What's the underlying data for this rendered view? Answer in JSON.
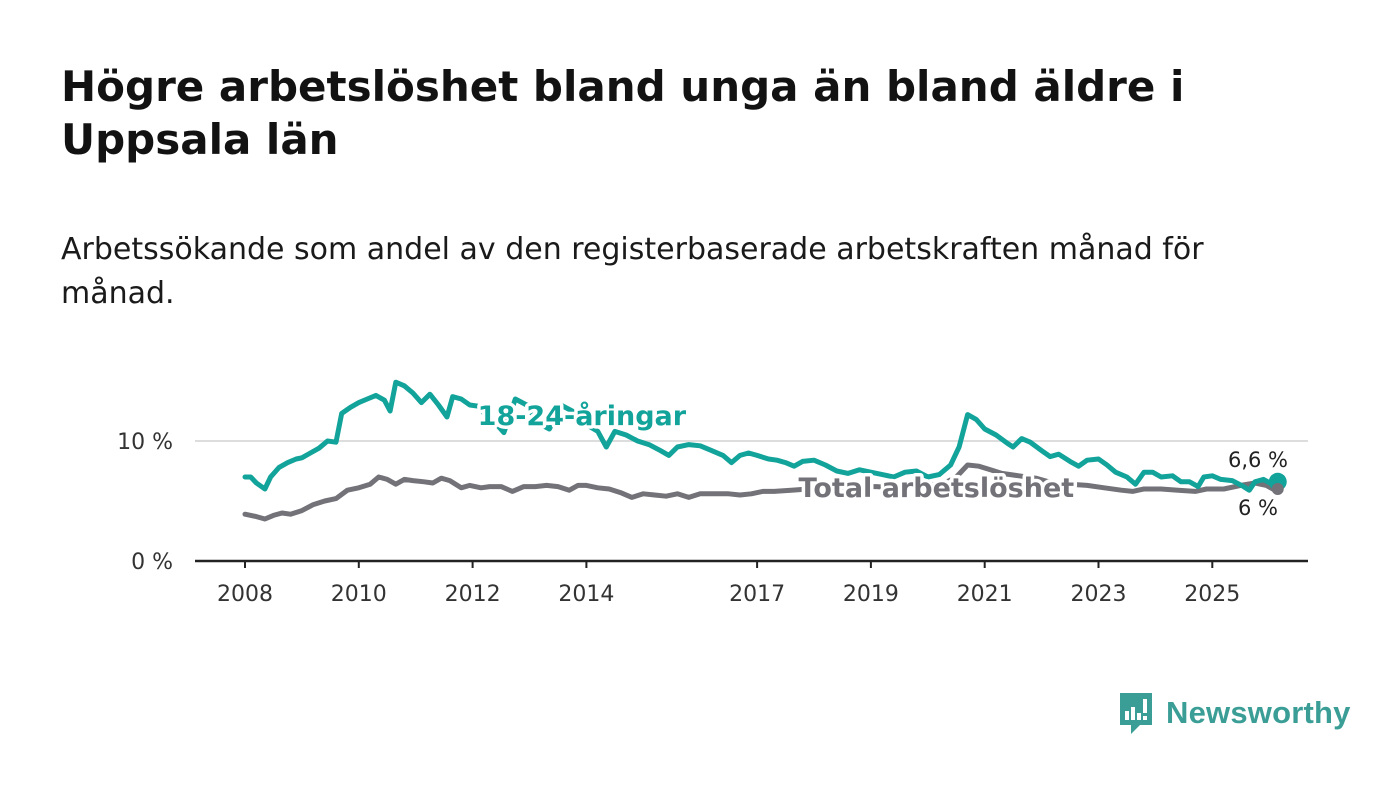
{
  "title": "Högre arbetslöshet bland unga än bland äldre i Uppsala län",
  "subtitle": "Arbetssökande som andel av den registerbaserade arbetskraften månad för månad.",
  "brand": {
    "name": "Newsworthy",
    "icon": "newsworthy-logo-icon"
  },
  "colors": {
    "youth": "#12a39a",
    "total": "#737278",
    "axis": "#222222",
    "grid": "#dddddd"
  },
  "chart_data": {
    "type": "line",
    "title": "Högre arbetslöshet bland unga än bland äldre i Uppsala län",
    "xlabel": "",
    "ylabel": "",
    "xlim": [
      2008.0,
      2026.8
    ],
    "ylim": [
      0,
      15
    ],
    "yticks": [
      {
        "value": 0,
        "label": "0 %"
      },
      {
        "value": 10,
        "label": "10 %"
      }
    ],
    "xticks": [
      {
        "value": 2008,
        "label": "2008"
      },
      {
        "value": 2010,
        "label": "2010"
      },
      {
        "value": 2012,
        "label": "2012"
      },
      {
        "value": 2014,
        "label": "2014"
      },
      {
        "value": 2017,
        "label": "2017"
      },
      {
        "value": 2019,
        "label": "2019"
      },
      {
        "value": 2021,
        "label": "2021"
      },
      {
        "value": 2023,
        "label": "2023"
      },
      {
        "value": 2025,
        "label": "2025"
      }
    ],
    "grid": true,
    "series": [
      {
        "name": "18-24-åringar",
        "label_at": [
          2012.3,
          12.1
        ],
        "end_label": "6,6 %",
        "end_value": 6.6,
        "points": [
          [
            2008.0,
            7.0
          ],
          [
            2008.1,
            7.0
          ],
          [
            2008.2,
            6.5
          ],
          [
            2008.35,
            6.0
          ],
          [
            2008.45,
            7.0
          ],
          [
            2008.6,
            7.8
          ],
          [
            2008.75,
            8.2
          ],
          [
            2008.9,
            8.5
          ],
          [
            2009.0,
            8.6
          ],
          [
            2009.15,
            9.0
          ],
          [
            2009.3,
            9.4
          ],
          [
            2009.45,
            10.0
          ],
          [
            2009.6,
            9.9
          ],
          [
            2009.7,
            12.3
          ],
          [
            2009.85,
            12.8
          ],
          [
            2010.0,
            13.2
          ],
          [
            2010.15,
            13.5
          ],
          [
            2010.3,
            13.8
          ],
          [
            2010.45,
            13.4
          ],
          [
            2010.55,
            12.5
          ],
          [
            2010.65,
            14.9
          ],
          [
            2010.8,
            14.6
          ],
          [
            2010.95,
            14.0
          ],
          [
            2011.1,
            13.2
          ],
          [
            2011.25,
            13.9
          ],
          [
            2011.4,
            13.0
          ],
          [
            2011.55,
            12.0
          ],
          [
            2011.65,
            13.7
          ],
          [
            2011.8,
            13.5
          ],
          [
            2011.95,
            13.0
          ],
          [
            2012.1,
            12.9
          ],
          [
            2012.25,
            12.0
          ],
          [
            2012.4,
            11.5
          ],
          [
            2012.55,
            10.7
          ],
          [
            2012.75,
            13.5
          ],
          [
            2012.95,
            13.0
          ],
          [
            2013.15,
            11.5
          ],
          [
            2013.35,
            11.0
          ],
          [
            2013.55,
            13.0
          ],
          [
            2013.75,
            12.5
          ],
          [
            2013.95,
            11.5
          ],
          [
            2014.2,
            10.8
          ],
          [
            2014.35,
            9.5
          ],
          [
            2014.5,
            10.8
          ],
          [
            2014.7,
            10.5
          ],
          [
            2014.9,
            10.0
          ],
          [
            2015.1,
            9.7
          ],
          [
            2015.3,
            9.2
          ],
          [
            2015.45,
            8.8
          ],
          [
            2015.6,
            9.5
          ],
          [
            2015.8,
            9.7
          ],
          [
            2016.0,
            9.6
          ],
          [
            2016.2,
            9.2
          ],
          [
            2016.4,
            8.8
          ],
          [
            2016.55,
            8.2
          ],
          [
            2016.7,
            8.8
          ],
          [
            2016.85,
            9.0
          ],
          [
            2017.0,
            8.8
          ],
          [
            2017.2,
            8.5
          ],
          [
            2017.35,
            8.4
          ],
          [
            2017.5,
            8.2
          ],
          [
            2017.65,
            7.9
          ],
          [
            2017.8,
            8.3
          ],
          [
            2018.0,
            8.4
          ],
          [
            2018.2,
            8.0
          ],
          [
            2018.4,
            7.5
          ],
          [
            2018.6,
            7.3
          ],
          [
            2018.8,
            7.6
          ],
          [
            2019.0,
            7.4
          ],
          [
            2019.2,
            7.2
          ],
          [
            2019.4,
            7.0
          ],
          [
            2019.6,
            7.4
          ],
          [
            2019.8,
            7.5
          ],
          [
            2020.0,
            7.0
          ],
          [
            2020.2,
            7.2
          ],
          [
            2020.4,
            8.0
          ],
          [
            2020.55,
            9.5
          ],
          [
            2020.7,
            12.2
          ],
          [
            2020.85,
            11.8
          ],
          [
            2021.0,
            11.0
          ],
          [
            2021.2,
            10.5
          ],
          [
            2021.4,
            9.8
          ],
          [
            2021.5,
            9.5
          ],
          [
            2021.65,
            10.2
          ],
          [
            2021.8,
            9.9
          ],
          [
            2022.0,
            9.2
          ],
          [
            2022.15,
            8.7
          ],
          [
            2022.3,
            8.9
          ],
          [
            2022.5,
            8.3
          ],
          [
            2022.65,
            7.9
          ],
          [
            2022.8,
            8.4
          ],
          [
            2023.0,
            8.5
          ],
          [
            2023.15,
            8.0
          ],
          [
            2023.3,
            7.4
          ],
          [
            2023.5,
            7.0
          ],
          [
            2023.65,
            6.4
          ],
          [
            2023.8,
            7.4
          ],
          [
            2023.95,
            7.4
          ],
          [
            2024.1,
            7.0
          ],
          [
            2024.3,
            7.1
          ],
          [
            2024.45,
            6.6
          ],
          [
            2024.6,
            6.6
          ],
          [
            2024.75,
            6.2
          ],
          [
            2024.85,
            7.0
          ],
          [
            2025.0,
            7.1
          ],
          [
            2025.15,
            6.8
          ],
          [
            2025.35,
            6.7
          ],
          [
            2025.55,
            6.2
          ],
          [
            2025.65,
            5.9
          ],
          [
            2025.75,
            6.6
          ],
          [
            2025.9,
            6.8
          ],
          [
            2026.05,
            6.4
          ],
          [
            2026.15,
            6.6
          ]
        ]
      },
      {
        "name": "Total arbetslöshet",
        "label_at": [
          2017.5,
          6.1
        ],
        "end_label": "6 %",
        "end_value": 6.0,
        "points": [
          [
            2008.0,
            3.9
          ],
          [
            2008.2,
            3.7
          ],
          [
            2008.35,
            3.5
          ],
          [
            2008.5,
            3.8
          ],
          [
            2008.65,
            4.0
          ],
          [
            2008.8,
            3.9
          ],
          [
            2009.0,
            4.2
          ],
          [
            2009.2,
            4.7
          ],
          [
            2009.4,
            5.0
          ],
          [
            2009.6,
            5.2
          ],
          [
            2009.8,
            5.9
          ],
          [
            2010.0,
            6.1
          ],
          [
            2010.2,
            6.4
          ],
          [
            2010.35,
            7.0
          ],
          [
            2010.5,
            6.8
          ],
          [
            2010.65,
            6.4
          ],
          [
            2010.8,
            6.8
          ],
          [
            2010.95,
            6.7
          ],
          [
            2011.15,
            6.6
          ],
          [
            2011.3,
            6.5
          ],
          [
            2011.45,
            6.9
          ],
          [
            2011.6,
            6.7
          ],
          [
            2011.8,
            6.1
          ],
          [
            2011.95,
            6.3
          ],
          [
            2012.15,
            6.1
          ],
          [
            2012.3,
            6.2
          ],
          [
            2012.5,
            6.2
          ],
          [
            2012.7,
            5.8
          ],
          [
            2012.9,
            6.2
          ],
          [
            2013.1,
            6.2
          ],
          [
            2013.3,
            6.3
          ],
          [
            2013.5,
            6.2
          ],
          [
            2013.7,
            5.9
          ],
          [
            2013.85,
            6.3
          ],
          [
            2014.0,
            6.3
          ],
          [
            2014.2,
            6.1
          ],
          [
            2014.4,
            6.0
          ],
          [
            2014.6,
            5.7
          ],
          [
            2014.8,
            5.3
          ],
          [
            2015.0,
            5.6
          ],
          [
            2015.2,
            5.5
          ],
          [
            2015.4,
            5.4
          ],
          [
            2015.6,
            5.6
          ],
          [
            2015.8,
            5.3
          ],
          [
            2016.0,
            5.6
          ],
          [
            2016.2,
            5.6
          ],
          [
            2016.5,
            5.6
          ],
          [
            2016.7,
            5.5
          ],
          [
            2016.9,
            5.6
          ],
          [
            2017.1,
            5.8
          ],
          [
            2017.3,
            5.8
          ],
          [
            2017.6,
            5.9
          ],
          [
            2017.9,
            6.0
          ],
          [
            2018.2,
            6.0
          ],
          [
            2018.5,
            6.1
          ],
          [
            2018.8,
            6.2
          ],
          [
            2019.1,
            6.2
          ],
          [
            2019.4,
            6.1
          ],
          [
            2019.7,
            6.3
          ],
          [
            2020.0,
            6.3
          ],
          [
            2020.3,
            6.5
          ],
          [
            2020.5,
            7.0
          ],
          [
            2020.7,
            8.0
          ],
          [
            2020.9,
            7.9
          ],
          [
            2021.1,
            7.6
          ],
          [
            2021.3,
            7.3
          ],
          [
            2021.6,
            7.1
          ],
          [
            2021.9,
            6.9
          ],
          [
            2022.2,
            6.5
          ],
          [
            2022.5,
            6.4
          ],
          [
            2022.8,
            6.3
          ],
          [
            2023.1,
            6.1
          ],
          [
            2023.4,
            5.9
          ],
          [
            2023.6,
            5.8
          ],
          [
            2023.8,
            6.0
          ],
          [
            2024.1,
            6.0
          ],
          [
            2024.4,
            5.9
          ],
          [
            2024.7,
            5.8
          ],
          [
            2024.9,
            6.0
          ],
          [
            2025.2,
            6.0
          ],
          [
            2025.5,
            6.3
          ],
          [
            2025.75,
            6.5
          ],
          [
            2025.95,
            6.3
          ],
          [
            2026.1,
            5.9
          ],
          [
            2026.15,
            6.0
          ]
        ]
      }
    ]
  }
}
